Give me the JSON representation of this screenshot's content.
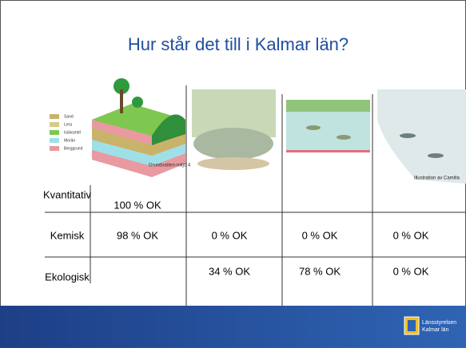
{
  "title": "Hur står det till i Kalmar län?",
  "legend": [
    "Sand",
    "Lera",
    "Isälvsmtrl",
    "Morän",
    "Berggrund"
  ],
  "caption": "Grundvatten-miljö 4",
  "credit": "Illustration av Camilla",
  "table": {
    "rows": [
      [
        "Kvantitativ",
        "100 % OK",
        null,
        null,
        null
      ],
      [
        "Kemisk",
        "98 % OK",
        "0 % OK",
        "0 % OK",
        "0 % OK"
      ],
      [
        "Ekologisk",
        null,
        "34 % OK",
        "78 % OK",
        "0 % OK"
      ]
    ]
  },
  "logo": [
    "Länsstyrelsen",
    "Kalmar län"
  ]
}
